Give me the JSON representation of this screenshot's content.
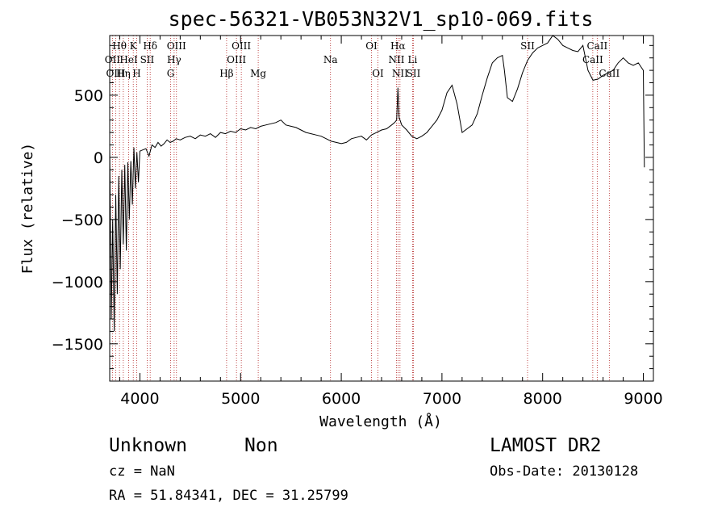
{
  "chart_data": {
    "type": "line",
    "title": "spec-56321-VB053N32V1_sp10-069.fits",
    "xlabel": "Wavelength (Å)",
    "ylabel": "Flux (relative)",
    "xlim": [
      3700,
      9100
    ],
    "ylim": [
      -1800,
      980
    ],
    "xticks": [
      4000,
      5000,
      6000,
      7000,
      8000,
      9000
    ],
    "xtick_labels": [
      "4000",
      "5000",
      "6000",
      "7000",
      "8000",
      "9000"
    ],
    "yticks": [
      -1500,
      -1000,
      -500,
      0,
      500
    ],
    "ytick_labels": [
      "−1500",
      "−1000",
      "−500",
      "0",
      "500"
    ],
    "grid": false,
    "series": [
      {
        "x": [
          3700,
          3715,
          3730,
          3745,
          3760,
          3775,
          3790,
          3805,
          3820,
          3835,
          3850,
          3865,
          3880,
          3895,
          3910,
          3925,
          3940,
          3955,
          3970,
          3985,
          4000,
          4030,
          4060,
          4090,
          4120,
          4150,
          4180,
          4210,
          4240,
          4270,
          4300,
          4330,
          4360,
          4400,
          4450,
          4500,
          4550,
          4600,
          4650,
          4700,
          4750,
          4800,
          4850,
          4900,
          4950,
          5000,
          5050,
          5100,
          5150,
          5200,
          5250,
          5300,
          5350,
          5400,
          5450,
          5500,
          5550,
          5600,
          5650,
          5700,
          5750,
          5800,
          5850,
          5900,
          5950,
          6000,
          6050,
          6100,
          6150,
          6200,
          6250,
          6300,
          6350,
          6400,
          6450,
          6500,
          6530,
          6550,
          6563,
          6575,
          6600,
          6650,
          6700,
          6750,
          6800,
          6850,
          6900,
          6950,
          7000,
          7050,
          7100,
          7150,
          7200,
          7250,
          7300,
          7350,
          7400,
          7450,
          7500,
          7550,
          7600,
          7620,
          7650,
          7700,
          7750,
          7800,
          7850,
          7900,
          7950,
          8000,
          8050,
          8100,
          8150,
          8200,
          8250,
          8300,
          8350,
          8400,
          8450,
          8500,
          8550,
          8600,
          8650,
          8700,
          8750,
          8800,
          8850,
          8900,
          8950,
          9000,
          9010
        ],
        "y": [
          100,
          -1300,
          -500,
          -1400,
          -300,
          -1100,
          -150,
          -900,
          -100,
          -700,
          -60,
          -750,
          -40,
          -500,
          -30,
          -380,
          80,
          -250,
          40,
          -200,
          50,
          60,
          70,
          10,
          100,
          80,
          120,
          90,
          110,
          140,
          120,
          130,
          150,
          140,
          160,
          170,
          150,
          180,
          170,
          190,
          160,
          200,
          190,
          210,
          200,
          230,
          220,
          240,
          230,
          250,
          260,
          270,
          280,
          300,
          260,
          250,
          240,
          220,
          200,
          190,
          180,
          170,
          150,
          130,
          120,
          110,
          120,
          150,
          160,
          170,
          140,
          180,
          200,
          220,
          230,
          260,
          280,
          300,
          560,
          320,
          260,
          220,
          170,
          150,
          170,
          200,
          250,
          300,
          380,
          520,
          580,
          430,
          200,
          230,
          260,
          350,
          500,
          640,
          760,
          800,
          820,
          700,
          480,
          450,
          550,
          680,
          780,
          840,
          880,
          900,
          920,
          980,
          950,
          900,
          880,
          860,
          850,
          900,
          700,
          620,
          630,
          660,
          680,
          700,
          760,
          800,
          760,
          740,
          760,
          700,
          -80
        ]
      }
    ],
    "line_markers": [
      {
        "name": "Hθ",
        "x": 3797,
        "row": 0
      },
      {
        "name": "K",
        "x": 3934,
        "row": 0
      },
      {
        "name": "Hδ",
        "x": 4102,
        "row": 0
      },
      {
        "name": "OIII",
        "x": 4363,
        "row": 0
      },
      {
        "name": "OIII",
        "x": 5007,
        "row": 0
      },
      {
        "name": "OI",
        "x": 6300,
        "row": 0
      },
      {
        "name": "Hα",
        "x": 6563,
        "row": 0
      },
      {
        "name": "SII",
        "x": 7850,
        "row": 0
      },
      {
        "name": "CaII",
        "x": 8542,
        "row": 0
      },
      {
        "name": "OII",
        "x": 3727,
        "row": 1
      },
      {
        "name": "HeI",
        "x": 3889,
        "row": 1
      },
      {
        "name": "SII",
        "x": 4072,
        "row": 1
      },
      {
        "name": "Hγ",
        "x": 4340,
        "row": 1
      },
      {
        "name": "OIII",
        "x": 4959,
        "row": 1
      },
      {
        "name": "Na",
        "x": 5893,
        "row": 1
      },
      {
        "name": "NII",
        "x": 6548,
        "row": 1
      },
      {
        "name": "Li",
        "x": 6708,
        "row": 1
      },
      {
        "name": "CaII",
        "x": 8498,
        "row": 1
      },
      {
        "name": "OIII",
        "x": 3760,
        "row": 2
      },
      {
        "name": "Hη",
        "x": 3835,
        "row": 2
      },
      {
        "name": "H",
        "x": 3968,
        "row": 2
      },
      {
        "name": "G",
        "x": 4305,
        "row": 2
      },
      {
        "name": "Hβ",
        "x": 4861,
        "row": 2
      },
      {
        "name": "Mg",
        "x": 5175,
        "row": 2
      },
      {
        "name": "OI",
        "x": 6364,
        "row": 2
      },
      {
        "name": "NII",
        "x": 6583,
        "row": 2
      },
      {
        "name": "SII",
        "x": 6717,
        "row": 2
      },
      {
        "name": "CaII",
        "x": 8662,
        "row": 2
      }
    ],
    "marker_color": "#b22222"
  },
  "info": {
    "object_class": "Unknown",
    "object_subclass": "Non",
    "survey": "LAMOST DR2",
    "redshift": "cz = NaN",
    "obs_date": "Obs-Date: 20130128",
    "coords": "RA =  51.84341, DEC =  31.25799"
  }
}
